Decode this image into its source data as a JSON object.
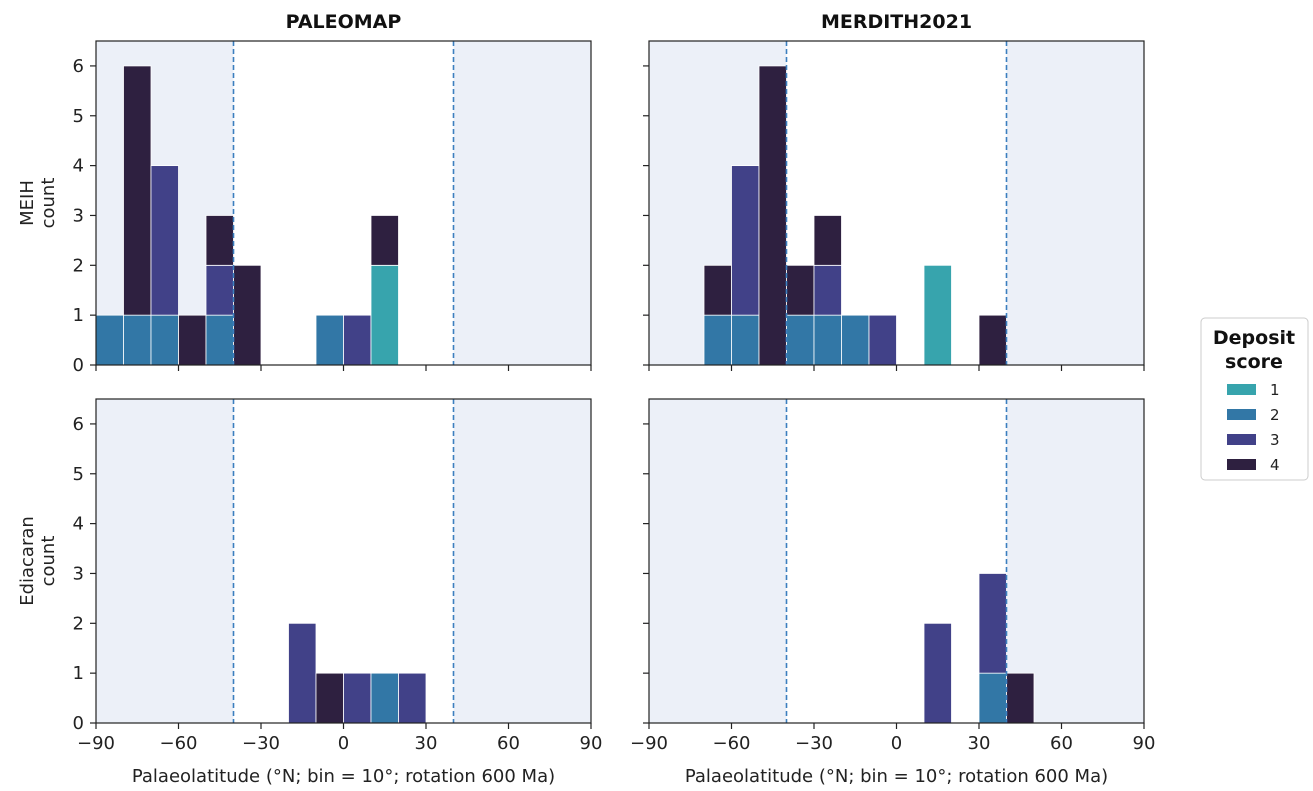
{
  "colors": {
    "score_1": "#37a4ad",
    "score_2": "#3277a6",
    "score_3": "#414188",
    "score_4": "#2e2040",
    "shade": "#ecf0f8",
    "threshold_line": "#3c7fbf"
  },
  "legend": {
    "title_line1": "Deposit",
    "title_line2": "score",
    "labels": [
      "1",
      "2",
      "3",
      "4"
    ]
  },
  "chart_data": [
    {
      "type": "bar",
      "stacked": true,
      "title": "PALEOMAP",
      "ylabel_line1": "MEIH",
      "ylabel_line2": "count",
      "xlabel": "",
      "xlim": [
        -90,
        90
      ],
      "ylim": [
        0,
        6.5
      ],
      "xticks": [
        -90,
        -60,
        -30,
        0,
        30,
        60,
        90
      ],
      "xtick_labels": [
        "",
        "",
        "",
        "",
        "",
        "",
        ""
      ],
      "yticks": [
        0,
        1,
        2,
        3,
        4,
        5,
        6
      ],
      "ytick_labels": [
        "0",
        "1",
        "2",
        "3",
        "4",
        "5",
        "6"
      ],
      "thresholds": [
        -40,
        40
      ],
      "bin_width": 10,
      "x": [
        -85,
        -75,
        -65,
        -55,
        -45,
        -35,
        -5,
        5,
        15
      ],
      "series": [
        {
          "name": "1",
          "values": [
            0,
            0,
            0,
            0,
            0,
            0,
            0,
            0,
            2
          ]
        },
        {
          "name": "2",
          "values": [
            1,
            1,
            1,
            0,
            1,
            0,
            1,
            0,
            0
          ]
        },
        {
          "name": "3",
          "values": [
            0,
            0,
            3,
            0,
            1,
            0,
            0,
            1,
            0
          ]
        },
        {
          "name": "4",
          "values": [
            0,
            5,
            0,
            1,
            1,
            2,
            0,
            0,
            1
          ]
        }
      ]
    },
    {
      "type": "bar",
      "stacked": true,
      "title": "MERDITH2021",
      "ylabel_line1": "",
      "ylabel_line2": "",
      "xlabel": "",
      "xlim": [
        -90,
        90
      ],
      "ylim": [
        0,
        6.5
      ],
      "xticks": [
        -90,
        -60,
        -30,
        0,
        30,
        60,
        90
      ],
      "xtick_labels": [
        "",
        "",
        "",
        "",
        "",
        "",
        ""
      ],
      "yticks": [
        0,
        1,
        2,
        3,
        4,
        5,
        6
      ],
      "ytick_labels": [
        "",
        "",
        "",
        "",
        "",
        "",
        ""
      ],
      "thresholds": [
        -40,
        40
      ],
      "bin_width": 10,
      "x": [
        -65,
        -55,
        -45,
        -35,
        -25,
        -15,
        -5,
        15,
        35
      ],
      "series": [
        {
          "name": "1",
          "values": [
            0,
            0,
            0,
            0,
            0,
            0,
            0,
            2,
            0
          ]
        },
        {
          "name": "2",
          "values": [
            1,
            1,
            0,
            1,
            1,
            1,
            0,
            0,
            0
          ]
        },
        {
          "name": "3",
          "values": [
            0,
            3,
            0,
            0,
            1,
            0,
            1,
            0,
            0
          ]
        },
        {
          "name": "4",
          "values": [
            1,
            0,
            6,
            1,
            1,
            0,
            0,
            0,
            1
          ]
        }
      ]
    },
    {
      "type": "bar",
      "stacked": true,
      "title": "",
      "ylabel_line1": "Ediacaran",
      "ylabel_line2": "count",
      "xlabel": "Palaeolatitude (°N; bin = 10°; rotation 600 Ma)",
      "xlim": [
        -90,
        90
      ],
      "ylim": [
        0,
        6.5
      ],
      "xticks": [
        -90,
        -60,
        -30,
        0,
        30,
        60,
        90
      ],
      "xtick_labels": [
        "−90",
        "−60",
        "−30",
        "0",
        "30",
        "60",
        "90"
      ],
      "yticks": [
        0,
        1,
        2,
        3,
        4,
        5,
        6
      ],
      "ytick_labels": [
        "0",
        "1",
        "2",
        "3",
        "4",
        "5",
        "6"
      ],
      "thresholds": [
        -40,
        40
      ],
      "bin_width": 10,
      "x": [
        -15,
        -5,
        5,
        15,
        25
      ],
      "series": [
        {
          "name": "1",
          "values": [
            0,
            0,
            0,
            0,
            0
          ]
        },
        {
          "name": "2",
          "values": [
            0,
            0,
            0,
            1,
            0
          ]
        },
        {
          "name": "3",
          "values": [
            2,
            0,
            1,
            0,
            1
          ]
        },
        {
          "name": "4",
          "values": [
            0,
            1,
            0,
            0,
            0
          ]
        }
      ]
    },
    {
      "type": "bar",
      "stacked": true,
      "title": "",
      "ylabel_line1": "",
      "ylabel_line2": "",
      "xlabel": "Palaeolatitude (°N; bin = 10°; rotation 600 Ma)",
      "xlim": [
        -90,
        90
      ],
      "ylim": [
        0,
        6.5
      ],
      "xticks": [
        -90,
        -60,
        -30,
        0,
        30,
        60,
        90
      ],
      "xtick_labels": [
        "−90",
        "−60",
        "−30",
        "0",
        "30",
        "60",
        "90"
      ],
      "yticks": [
        0,
        1,
        2,
        3,
        4,
        5,
        6
      ],
      "ytick_labels": [
        "",
        "",
        "",
        "",
        "",
        "",
        ""
      ],
      "thresholds": [
        -40,
        40
      ],
      "bin_width": 10,
      "x": [
        15,
        35,
        45
      ],
      "series": [
        {
          "name": "1",
          "values": [
            0,
            0,
            0
          ]
        },
        {
          "name": "2",
          "values": [
            0,
            1,
            0
          ]
        },
        {
          "name": "3",
          "values": [
            2,
            2,
            0
          ]
        },
        {
          "name": "4",
          "values": [
            0,
            0,
            1
          ]
        }
      ]
    }
  ]
}
